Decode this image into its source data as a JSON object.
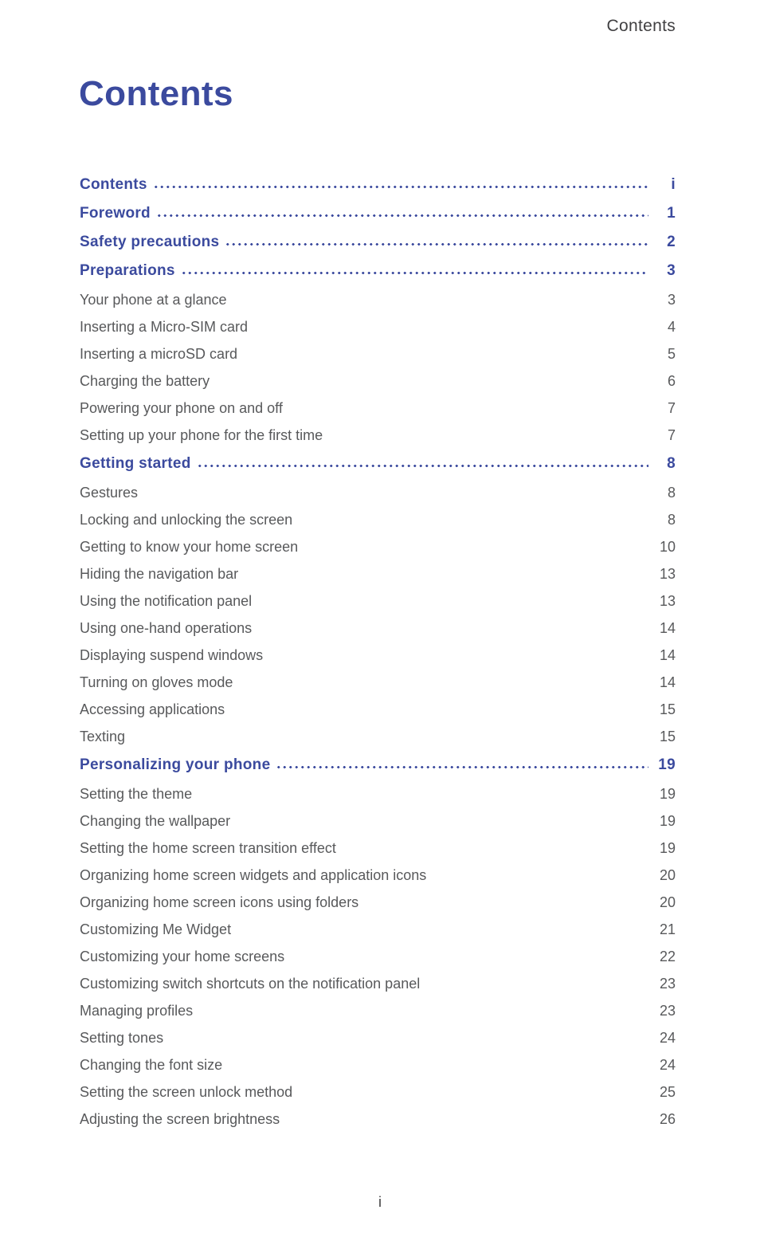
{
  "page": {
    "running_header": "Contents",
    "title": "Contents",
    "footer_page_number": "i"
  },
  "colors": {
    "accent_blue": "#3B4A9E",
    "section_text_gray": "#58595B",
    "header_footer_gray": "#414042",
    "background": "#FFFFFF"
  },
  "toc": {
    "entries": [
      {
        "label": "Contents",
        "page": "i",
        "level": "chapter"
      },
      {
        "label": "Foreword",
        "page": "1",
        "level": "chapter"
      },
      {
        "label": "Safety precautions",
        "page": "2",
        "level": "chapter"
      },
      {
        "label": "Preparations",
        "page": "3",
        "level": "chapter"
      },
      {
        "label": "Your phone at a glance",
        "page": "3",
        "level": "section"
      },
      {
        "label": "Inserting a Micro-SIM card",
        "page": "4",
        "level": "section"
      },
      {
        "label": "Inserting a microSD card",
        "page": "5",
        "level": "section"
      },
      {
        "label": "Charging the battery",
        "page": "6",
        "level": "section"
      },
      {
        "label": "Powering your phone on and off",
        "page": "7",
        "level": "section"
      },
      {
        "label": "Setting up your phone for the first time",
        "page": "7",
        "level": "section"
      },
      {
        "label": "Getting started",
        "page": "8",
        "level": "chapter"
      },
      {
        "label": "Gestures",
        "page": "8",
        "level": "section"
      },
      {
        "label": "Locking and unlocking the screen",
        "page": "8",
        "level": "section"
      },
      {
        "label": "Getting to know your home screen",
        "page": "10",
        "level": "section"
      },
      {
        "label": "Hiding the navigation bar",
        "page": "13",
        "level": "section"
      },
      {
        "label": "Using the notification panel",
        "page": "13",
        "level": "section"
      },
      {
        "label": "Using one-hand operations",
        "page": "14",
        "level": "section"
      },
      {
        "label": "Displaying suspend windows",
        "page": "14",
        "level": "section"
      },
      {
        "label": "Turning on gloves mode",
        "page": "14",
        "level": "section"
      },
      {
        "label": "Accessing applications",
        "page": "15",
        "level": "section"
      },
      {
        "label": "Texting",
        "page": "15",
        "level": "section"
      },
      {
        "label": "Personalizing your phone",
        "page": "19",
        "level": "chapter"
      },
      {
        "label": "Setting the theme",
        "page": "19",
        "level": "section"
      },
      {
        "label": "Changing the wallpaper",
        "page": "19",
        "level": "section"
      },
      {
        "label": "Setting the home screen transition effect",
        "page": "19",
        "level": "section"
      },
      {
        "label": "Organizing home screen widgets and application icons",
        "page": "20",
        "level": "section"
      },
      {
        "label": "Organizing home screen icons using folders",
        "page": "20",
        "level": "section"
      },
      {
        "label": "Customizing Me Widget",
        "page": "21",
        "level": "section"
      },
      {
        "label": "Customizing your home screens",
        "page": "22",
        "level": "section"
      },
      {
        "label": "Customizing switch shortcuts on the notification panel",
        "page": "23",
        "level": "section"
      },
      {
        "label": "Managing profiles",
        "page": "23",
        "level": "section"
      },
      {
        "label": "Setting tones",
        "page": "24",
        "level": "section"
      },
      {
        "label": "Changing the font size",
        "page": "24",
        "level": "section"
      },
      {
        "label": "Setting the screen unlock method",
        "page": "25",
        "level": "section"
      },
      {
        "label": "Adjusting the screen brightness",
        "page": "26",
        "level": "section"
      }
    ]
  }
}
